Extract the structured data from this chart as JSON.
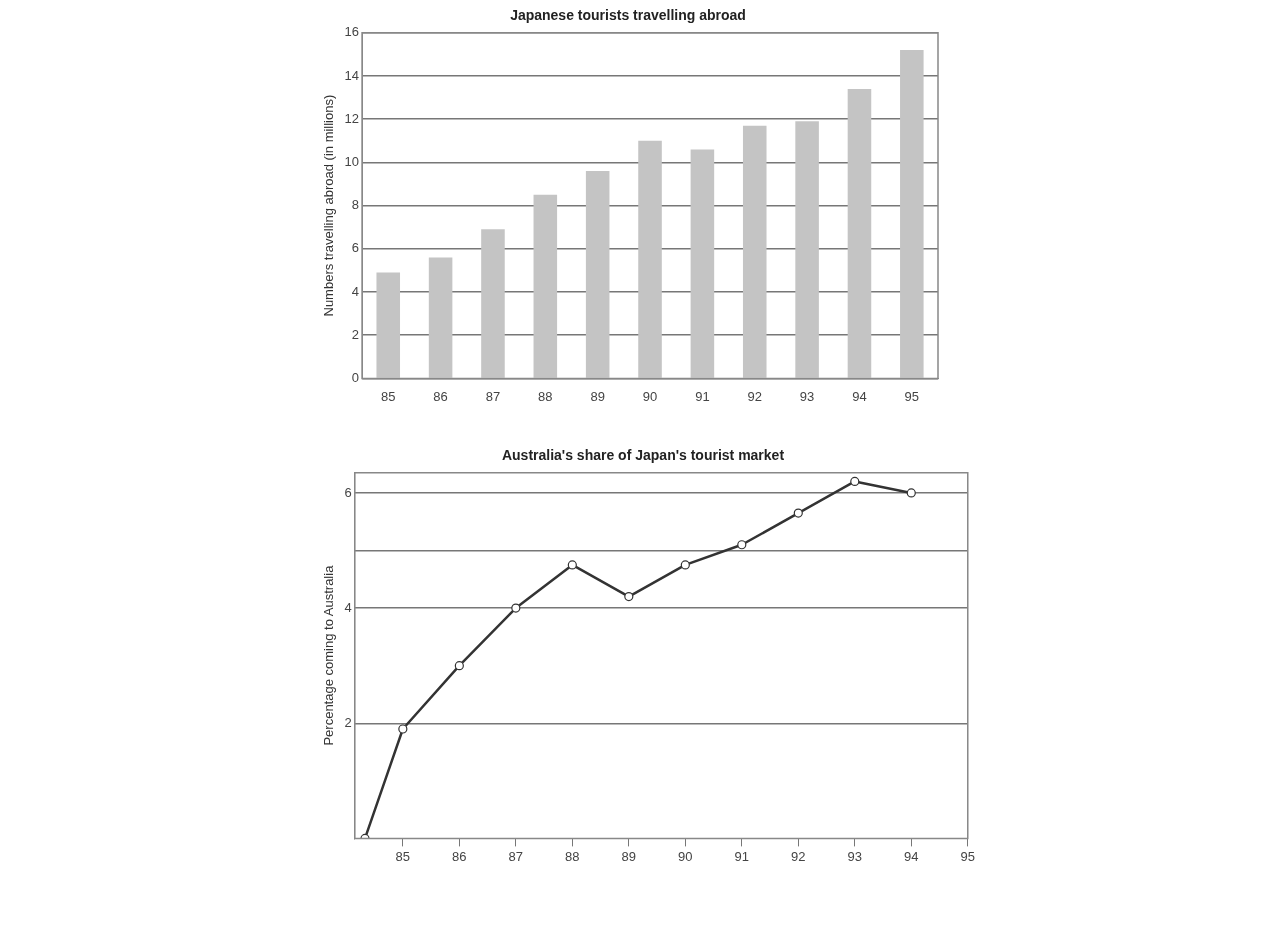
{
  "chart_data": [
    {
      "type": "bar",
      "title": "Japanese tourists travelling abroad",
      "ylabel": "Numbers travelling abroad (in millions)",
      "categories": [
        "85",
        "86",
        "87",
        "88",
        "89",
        "90",
        "91",
        "92",
        "93",
        "94",
        "95"
      ],
      "values": [
        4.9,
        5.6,
        6.9,
        8.5,
        9.6,
        11.0,
        10.6,
        11.7,
        11.9,
        13.4,
        15.2
      ],
      "color": "#c4c4c4",
      "ylim": [
        0,
        16
      ],
      "yticks": [
        0,
        2,
        4,
        6,
        8,
        10,
        12,
        14,
        16
      ],
      "grid": "y",
      "legend": false
    },
    {
      "type": "line",
      "title": "Australia's share of Japan's tourist market",
      "ylabel": "Percentage coming to Australia",
      "x": [
        84.33,
        85,
        86,
        87,
        88,
        89,
        90,
        91,
        92,
        93,
        94
      ],
      "values": [
        0,
        1.9,
        3.0,
        4.0,
        4.75,
        4.2,
        4.75,
        5.1,
        5.65,
        6.2,
        6.0
      ],
      "color": "#333333",
      "marker": "circle",
      "line_style": "solid",
      "xlim": [
        84.15,
        95
      ],
      "xticks": [
        85,
        86,
        87,
        88,
        89,
        90,
        91,
        92,
        93,
        94,
        95
      ],
      "ylim": [
        0,
        6.35
      ],
      "yticks": [
        2,
        4,
        {
          "value": 5,
          "label": null
        },
        6
      ],
      "grid": "y",
      "legend": false
    }
  ]
}
